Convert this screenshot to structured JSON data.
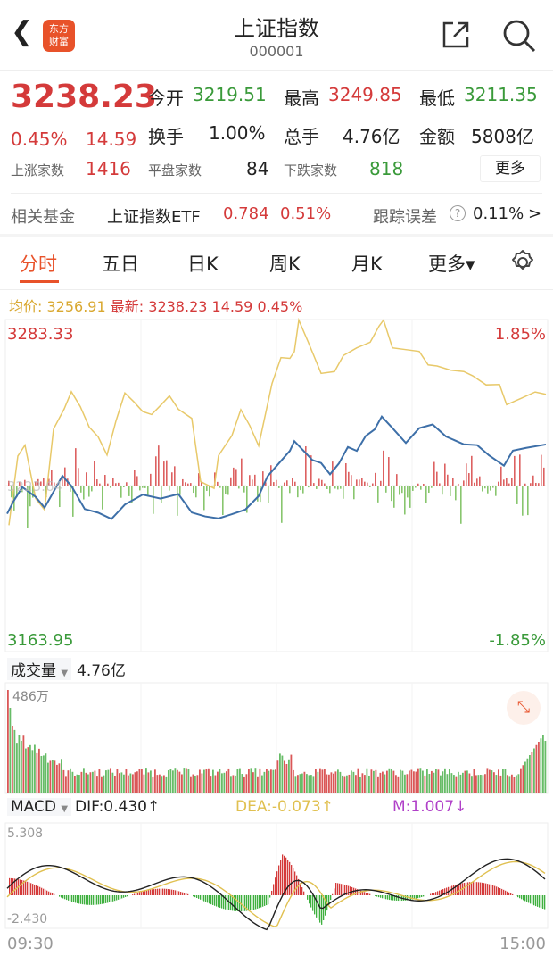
{
  "header": {
    "back_icon": "chevron-left",
    "title": "上证指数",
    "code": "000001",
    "logo_text": [
      "东方",
      "财富"
    ],
    "share_icon": "share-external",
    "search_icon": "search"
  },
  "quote": {
    "price": "3238.23",
    "change_pct": "0.45%",
    "change": "14.59",
    "open_label": "今开",
    "open": "3219.51",
    "high_label": "最高",
    "high": "3249.85",
    "low_label": "最低",
    "low": "3211.35",
    "turnover_label": "换手",
    "turnover": "1.00%",
    "volume_label": "总手",
    "volume": "4.76亿",
    "amount_label": "金额",
    "amount": "5808亿",
    "up_label": "上涨家数",
    "up": "1416",
    "flat_label": "平盘家数",
    "flat": "84",
    "down_label": "下跌家数",
    "down": "818",
    "more": "更多"
  },
  "fund": {
    "label": "相关基金",
    "name": "上证指数ETF",
    "price": "0.784",
    "pct": "0.51%",
    "track_label": "跟踪误差",
    "track": "0.11%",
    "arrow": ">"
  },
  "tabs": [
    "分时",
    "五日",
    "日K",
    "周K",
    "月K",
    "更多▾"
  ],
  "settings_icon": "gear",
  "info": {
    "avg_label": "均价:",
    "avg": "3256.91",
    "latest_label": "最新:",
    "latest": "3238.23",
    "chg": "14.59",
    "pct": "0.45%"
  },
  "chart": {
    "top_price": "3283.33",
    "top_pct": "1.85%",
    "mid_price": "3223.64",
    "bottom_price": "3163.95",
    "bottom_pct": "-1.85%"
  },
  "volume": {
    "label": "成交量",
    "value": "4.76亿",
    "max": "486万",
    "expand_icon": "expand-arrows"
  },
  "macd": {
    "label": "MACD",
    "dif": "DIF:0.430↑",
    "dea": "DEA:-0.073↑",
    "m": "M:1.007↓",
    "max": "5.308",
    "min": "-2.430"
  },
  "time": {
    "start": "09:30",
    "end": "15:00"
  },
  "colors": {
    "up": "#d43a3a",
    "down": "#3a9a3a",
    "accent": "#e8522a",
    "avg_line": "#e8c96a",
    "price_line": "#3d6fa8",
    "dea": "#e0c050",
    "m": "#b040c8"
  }
}
